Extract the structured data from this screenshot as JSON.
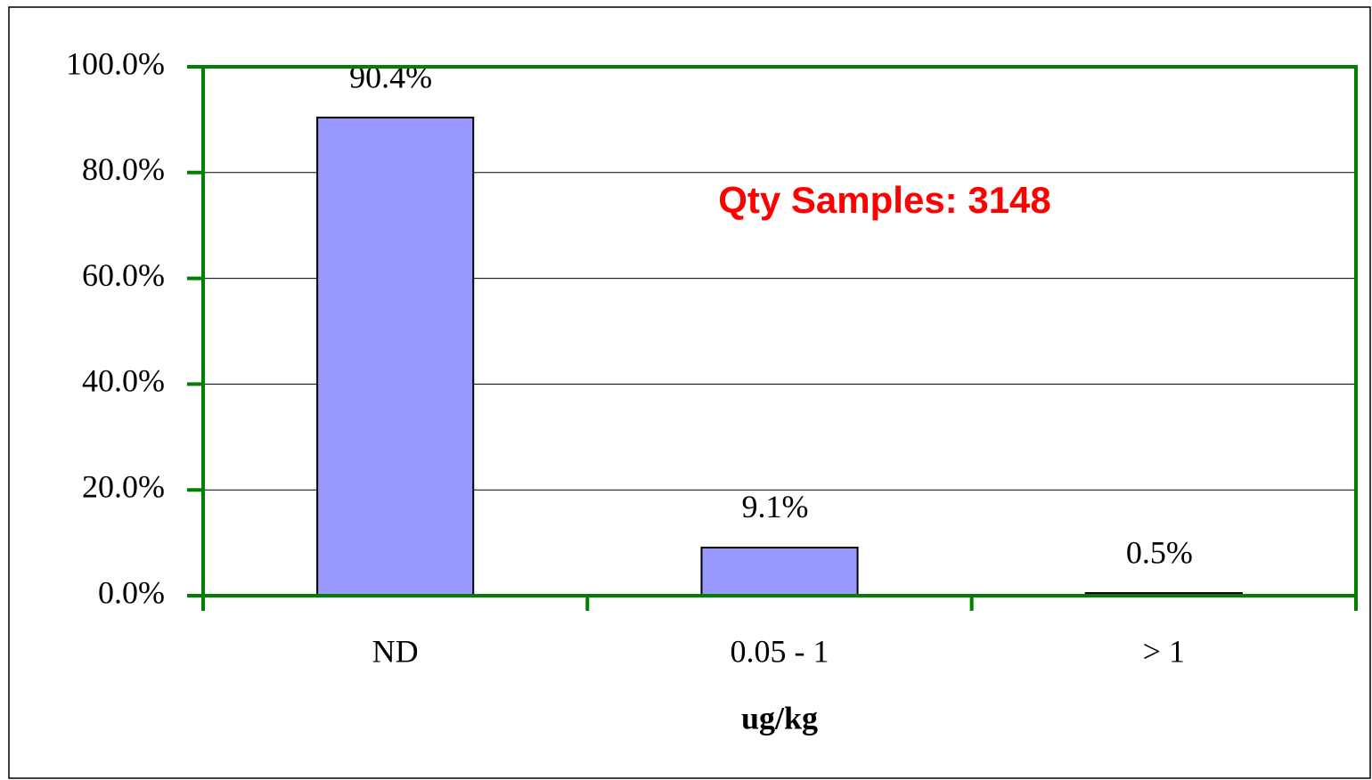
{
  "chart_data": {
    "type": "bar",
    "categories": [
      "ND",
      "0.05 - 1",
      "> 1"
    ],
    "values": [
      90.4,
      9.1,
      0.5
    ],
    "value_labels": [
      "90.4%",
      "9.1%",
      "0.5%"
    ],
    "color": "#9999ff",
    "x_label": "ug/kg",
    "annotation": "Qty Samples: 3148",
    "ylim": [
      0,
      100
    ],
    "yticks": [
      {
        "value": 0,
        "label": "0.0%"
      },
      {
        "value": 20,
        "label": "20.0%"
      },
      {
        "value": 40,
        "label": "40.0%"
      },
      {
        "value": 60,
        "label": "60.0%"
      },
      {
        "value": 80,
        "label": "80.0%"
      },
      {
        "value": 100,
        "label": "100.0%"
      }
    ],
    "grid": true
  }
}
